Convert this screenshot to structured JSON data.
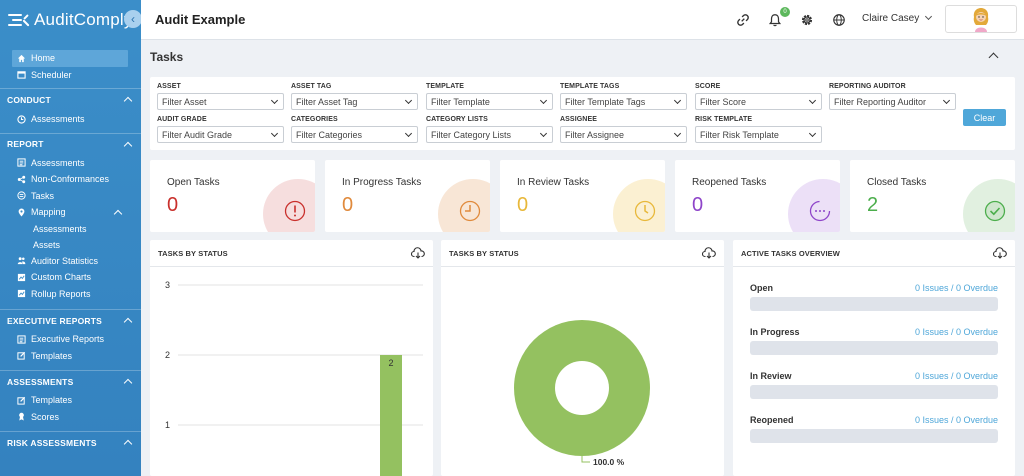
{
  "app": {
    "logo_text": "AuditComply"
  },
  "sidebar": {
    "main_items": [
      {
        "label": "Home",
        "icon": "home-icon"
      },
      {
        "label": "Scheduler",
        "icon": "calendar-icon"
      }
    ],
    "sections": [
      {
        "title": "CONDUCT",
        "items": [
          "Assessments"
        ]
      },
      {
        "title": "REPORT",
        "items": [
          "Assessments",
          "Non-Conformances",
          "Tasks",
          "Mapping",
          "Assessments",
          "Assets",
          "Auditor Statistics",
          "Custom Charts",
          "Rollup Reports"
        ]
      },
      {
        "title": "EXECUTIVE REPORTS",
        "items": [
          "Executive Reports",
          "Templates"
        ]
      },
      {
        "title": "ASSESSMENTS",
        "items": [
          "Templates",
          "Scores"
        ]
      },
      {
        "title": "RISK ASSESSMENTS",
        "items": []
      }
    ]
  },
  "header": {
    "title": "Audit Example",
    "notification_count": "0",
    "user_name": "Claire Casey"
  },
  "tasks": {
    "title": "Tasks",
    "filters": [
      {
        "label": "ASSET",
        "placeholder": "Filter Asset"
      },
      {
        "label": "ASSET TAG",
        "placeholder": "Filter Asset Tag"
      },
      {
        "label": "TEMPLATE",
        "placeholder": "Filter Template"
      },
      {
        "label": "TEMPLATE TAGS",
        "placeholder": "Filter Template Tags"
      },
      {
        "label": "SCORE",
        "placeholder": "Filter Score"
      },
      {
        "label": "REPORTING AUDITOR",
        "placeholder": "Filter Reporting Auditor"
      },
      {
        "label": "AUDIT GRADE",
        "placeholder": "Filter Audit Grade"
      },
      {
        "label": "CATEGORIES",
        "placeholder": "Filter Categories"
      },
      {
        "label": "CATEGORY LISTS",
        "placeholder": "Filter Category Lists"
      },
      {
        "label": "ASSIGNEE",
        "placeholder": "Filter Assignee"
      },
      {
        "label": "RISK TEMPLATE",
        "placeholder": "Filter Risk Template"
      }
    ],
    "clear_label": "Clear"
  },
  "stats": [
    {
      "label": "Open Tasks",
      "value": "0",
      "color": "#c9302c",
      "tint": "#f6dede",
      "icon": "alert-icon"
    },
    {
      "label": "In Progress Tasks",
      "value": "0",
      "color": "#e08a3c",
      "tint": "#f8e6d6",
      "icon": "progress-icon"
    },
    {
      "label": "In Review Tasks",
      "value": "0",
      "color": "#e8b83a",
      "tint": "#fbf0d2",
      "icon": "review-icon"
    },
    {
      "label": "Reopened Tasks",
      "value": "0",
      "color": "#8e44c9",
      "tint": "#ece0f7",
      "icon": "reopen-icon"
    },
    {
      "label": "Closed Tasks",
      "value": "2",
      "color": "#4cae4c",
      "tint": "#e1f0e0",
      "icon": "check-icon"
    }
  ],
  "panels": {
    "bar_title": "TASKS BY STATUS",
    "pie_title": "TASKS BY STATUS",
    "overview_title": "ACTIVE TASKS OVERVIEW"
  },
  "overview": [
    {
      "label": "Open",
      "value": "0 Issues / 0 Overdue"
    },
    {
      "label": "In Progress",
      "value": "0 Issues / 0 Overdue"
    },
    {
      "label": "In Review",
      "value": "0 Issues / 0 Overdue"
    },
    {
      "label": "Reopened",
      "value": "0 Issues / 0 Overdue"
    }
  ],
  "chart_data": [
    {
      "type": "bar",
      "title": "TASKS BY STATUS",
      "categories": [
        ""
      ],
      "values": [
        2
      ],
      "data_labels": [
        "2"
      ],
      "y_ticks": [
        "1",
        "2",
        "3"
      ],
      "ylim": [
        0,
        3
      ],
      "grid": true,
      "color": "#94c160"
    },
    {
      "type": "pie",
      "title": "TASKS BY STATUS",
      "slices": [
        {
          "value": 100.0
        }
      ],
      "data_labels": [
        "100.0 %"
      ],
      "donut": true,
      "color": "#94c160"
    }
  ]
}
